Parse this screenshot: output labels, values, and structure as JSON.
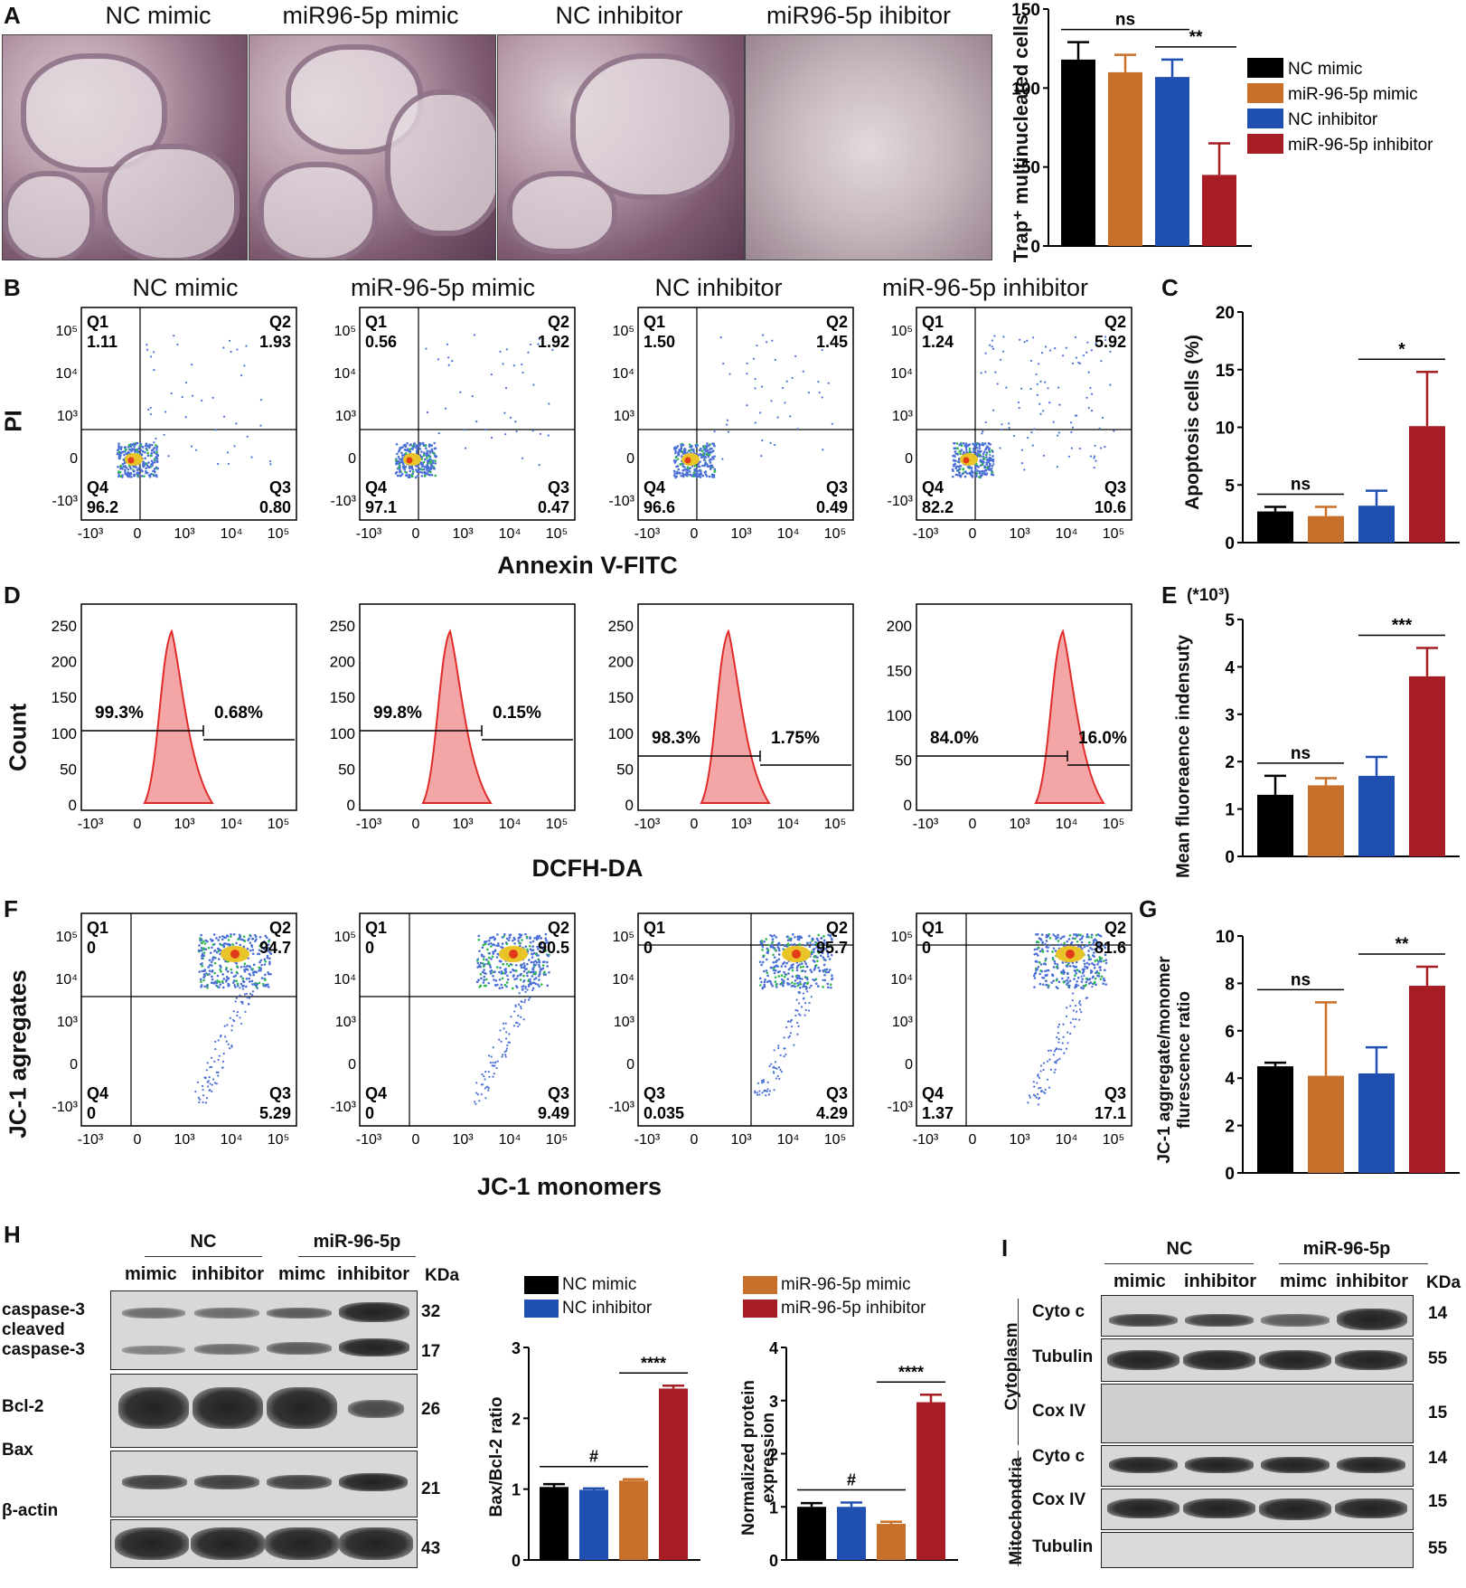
{
  "panels": {
    "A": {
      "letter": "A",
      "photos": [
        "NC mimic",
        "miR96-5p mimic",
        "NC inhibitor",
        "miR96-5p ihibitor"
      ],
      "chart_data": {
        "type": "bar",
        "ylabel": "Trap⁺ multinucleated cells",
        "ylim": [
          0,
          150
        ],
        "yticks": [
          0,
          50,
          100,
          150
        ],
        "categories": [
          "NC mimic",
          "miR-96-5p mimic",
          "NC inhibitor",
          "miR-96-5p inhibitor"
        ],
        "values": [
          118,
          110,
          107,
          45
        ],
        "errors": [
          11,
          11,
          11,
          20
        ],
        "colors": [
          "#000000",
          "#c8702a",
          "#1f4fb0",
          "#a61e24"
        ],
        "sig": [
          {
            "from": 0,
            "to": 2,
            "label": "ns"
          },
          {
            "from": 2,
            "to": 3,
            "label": "**"
          }
        ],
        "legend": [
          "NC mimic",
          "miR-96-5p mimic",
          "NC inhibitor",
          "miR-96-5p inhibitor"
        ]
      }
    },
    "B": {
      "letter": "B",
      "titles": [
        "NC mimic",
        "miR-96-5p mimic",
        "NC inhibitor",
        "miR-96-5p inhibitor"
      ],
      "ylabel": "PI",
      "xlabel": "Annexin V-FITC",
      "yticks": [
        "10⁵",
        "10⁴",
        "10³",
        "0",
        "-10³"
      ],
      "xticks": [
        "-10³",
        "0",
        "10³",
        "10⁴",
        "10⁵"
      ],
      "quadrants": [
        {
          "Q1": "1.11",
          "Q2": "1.93",
          "Q3": "0.80",
          "Q4": "96.2"
        },
        {
          "Q1": "0.56",
          "Q2": "1.92",
          "Q3": "0.47",
          "Q4": "97.1"
        },
        {
          "Q1": "1.50",
          "Q2": "1.45",
          "Q3": "0.49",
          "Q4": "96.6"
        },
        {
          "Q1": "1.24",
          "Q2": "5.92",
          "Q3": "10.6",
          "Q4": "82.2"
        }
      ]
    },
    "C": {
      "letter": "C",
      "chart_data": {
        "type": "bar",
        "ylabel": "Apoptosis cells (%)",
        "ylim": [
          0,
          20
        ],
        "yticks": [
          0,
          5,
          10,
          15,
          20
        ],
        "categories": [
          "NC mimic",
          "miR-96-5p mimic",
          "NC inhibitor",
          "miR-96-5p inhibitor"
        ],
        "values": [
          2.7,
          2.3,
          3.2,
          10.1
        ],
        "errors": [
          0.4,
          0.8,
          1.3,
          4.7
        ],
        "colors": [
          "#000000",
          "#c8702a",
          "#1f4fb0",
          "#a61e24"
        ],
        "sig": [
          {
            "from": 0,
            "to": 1,
            "label": "ns"
          },
          {
            "from": 2,
            "to": 3,
            "label": "*"
          }
        ]
      }
    },
    "D": {
      "letter": "D",
      "ylabel": "Count",
      "xlabel": "DCFH-DA",
      "xticks": [
        "-10³",
        "0",
        "10³",
        "10⁴",
        "10⁵"
      ],
      "histos": [
        {
          "ymax": 250,
          "yticks": [
            "0",
            "50",
            "100",
            "150",
            "200",
            "250"
          ],
          "left": "99.3%",
          "right": "0.68%"
        },
        {
          "ymax": 250,
          "yticks": [
            "0",
            "50",
            "100",
            "150",
            "200",
            "250"
          ],
          "left": "99.8%",
          "right": "0.15%"
        },
        {
          "ymax": 250,
          "yticks": [
            "0",
            "50",
            "100",
            "150",
            "200",
            "250"
          ],
          "left": "98.3%",
          "right": "1.75%"
        },
        {
          "ymax": 200,
          "yticks": [
            "0",
            "50",
            "100",
            "150",
            "200"
          ],
          "left": "84.0%",
          "right": "16.0%"
        }
      ]
    },
    "E": {
      "letter": "E",
      "chart_data": {
        "type": "bar",
        "ylabel": "Mean fluoreaence indensuty",
        "unit_note": "(*10³)",
        "ylim": [
          0,
          5
        ],
        "yticks": [
          0,
          1,
          2,
          3,
          4,
          5
        ],
        "categories": [
          "NC mimic",
          "miR-96-5p mimic",
          "NC inhibitor",
          "miR-96-5p inhibitor"
        ],
        "values": [
          1.3,
          1.5,
          1.7,
          3.8
        ],
        "errors": [
          0.4,
          0.15,
          0.4,
          0.6
        ],
        "colors": [
          "#000000",
          "#c8702a",
          "#1f4fb0",
          "#a61e24"
        ],
        "sig": [
          {
            "from": 0,
            "to": 1,
            "label": "ns"
          },
          {
            "from": 2,
            "to": 3,
            "label": "***"
          }
        ]
      }
    },
    "F": {
      "letter": "F",
      "ylabel": "JC-1 agregates",
      "xlabel": "JC-1 monomers",
      "yticks": [
        "10⁵",
        "10⁴",
        "10³",
        "0",
        "-10³"
      ],
      "xticks": [
        "-10³",
        "0",
        "10³",
        "10⁴",
        "10⁵"
      ],
      "quadrants": [
        {
          "Q1": "0",
          "Q2": "94.7",
          "Q3": "5.29",
          "Q4": "0",
          "Q4name": "Q4"
        },
        {
          "Q1": "0",
          "Q2": "90.5",
          "Q3": "9.49",
          "Q4": "0",
          "Q4name": "Q4"
        },
        {
          "Q1": "0",
          "Q2": "95.7",
          "Q3": "4.29",
          "Q4": "0.035",
          "Q4name": "Q3"
        },
        {
          "Q1": "0",
          "Q2": "81.6",
          "Q3": "17.1",
          "Q4": "1.37",
          "Q4name": "Q4"
        }
      ]
    },
    "G": {
      "letter": "G",
      "chart_data": {
        "type": "bar",
        "ylabel": "JC-1 aggregate/monomer flurescence ratio",
        "ylim": [
          0,
          10
        ],
        "yticks": [
          0,
          2,
          4,
          6,
          8,
          10
        ],
        "categories": [
          "NC mimic",
          "miR-96-5p mimic",
          "NC inhibitor",
          "miR-96-5p inhibitor"
        ],
        "values": [
          4.5,
          4.1,
          4.2,
          7.9
        ],
        "errors": [
          0.15,
          3.1,
          1.1,
          0.8
        ],
        "colors": [
          "#000000",
          "#c8702a",
          "#1f4fb0",
          "#a61e24"
        ],
        "sig": [
          {
            "from": 0,
            "to": 1,
            "label": "ns"
          },
          {
            "from": 2,
            "to": 3,
            "label": "**"
          }
        ]
      }
    },
    "H": {
      "letter": "H",
      "group_nc": "NC",
      "group_mir": "miR-96-5p",
      "lanes": [
        "mimic",
        "inhibitor",
        "mimc",
        "inhibitor"
      ],
      "kda_header": "KDa",
      "rows": [
        {
          "label": "caspase-3",
          "kda": "32"
        },
        {
          "label": "cleaved",
          "kda": ""
        },
        {
          "label": "caspase-3",
          "kda": "17"
        },
        {
          "label": "Bcl-2",
          "kda": "26"
        },
        {
          "label": "Bax",
          "kda": "21"
        },
        {
          "label": "β-actin",
          "kda": "43"
        }
      ],
      "legend": [
        "NC mimic",
        "NC inhibitor",
        "miR-96-5p mimic",
        "miR-96-5p inhibitor"
      ],
      "chart_data": [
        {
          "type": "bar",
          "ylabel": "Bax/Bcl-2 ratio",
          "ylim": [
            0,
            3
          ],
          "yticks": [
            0,
            1,
            2,
            3
          ],
          "categories": [
            "NC mimic",
            "NC inhibitor",
            "miR-96-5p mimic",
            "miR-96-5p inhibitor"
          ],
          "values": [
            1.03,
            0.99,
            1.12,
            2.42
          ],
          "errors": [
            0.04,
            0.02,
            0.02,
            0.04
          ],
          "colors": [
            "#000000",
            "#1f4fb0",
            "#c8702a",
            "#a61e24"
          ],
          "sig": [
            {
              "from": 0,
              "to": 2,
              "label": "#"
            },
            {
              "from": 2,
              "to": 3,
              "label": "****"
            }
          ]
        },
        {
          "type": "bar",
          "ylabel": "Normalized protein expression",
          "ylim": [
            0,
            4
          ],
          "yticks": [
            0,
            1,
            2,
            3,
            4
          ],
          "categories": [
            "NC mimic",
            "NC inhibitor",
            "miR-96-5p mimic",
            "miR-96-5p inhibitor"
          ],
          "values": [
            1.0,
            1.0,
            0.68,
            2.97
          ],
          "errors": [
            0.07,
            0.08,
            0.04,
            0.14
          ],
          "colors": [
            "#000000",
            "#1f4fb0",
            "#c8702a",
            "#a61e24"
          ],
          "sig": [
            {
              "from": 0,
              "to": 2,
              "label": "#"
            },
            {
              "from": 2,
              "to": 3,
              "label": "****"
            }
          ]
        }
      ]
    },
    "I": {
      "letter": "I",
      "group_nc": "NC",
      "group_mir": "miR-96-5p",
      "lanes": [
        "mimic",
        "inhibitor",
        "mimc",
        "inhibitor"
      ],
      "kda_header": "KDa",
      "section_cyto": "Cytoplasm",
      "section_mito": "Mitochondria",
      "rows": [
        {
          "label": "Cyto c",
          "kda": "14"
        },
        {
          "label": "Tubulin",
          "kda": "55"
        },
        {
          "label": "Cox IV",
          "kda": "15"
        },
        {
          "label": "Cyto c",
          "kda": "14"
        },
        {
          "label": "Cox IV",
          "kda": "15"
        },
        {
          "label": "Tubulin",
          "kda": "55"
        }
      ]
    }
  }
}
